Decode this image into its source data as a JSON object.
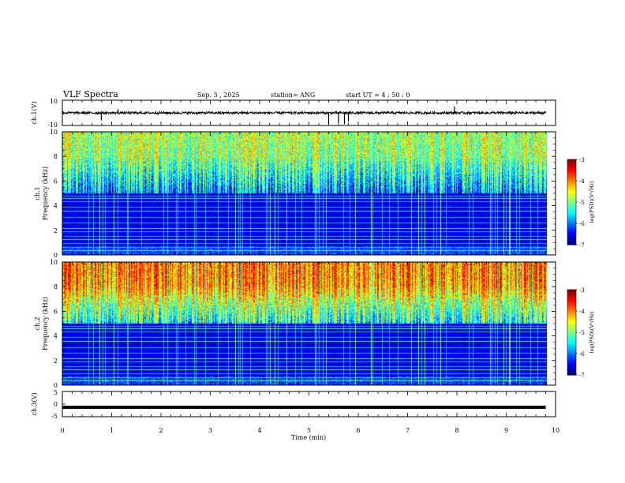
{
  "header": {
    "title": "VLF Spectra",
    "date": "Sep. 3 , 2025",
    "station": "station= ANG",
    "start": "start  UT =   4 : 50 : 0"
  },
  "chart_data": [
    {
      "type": "line",
      "name": "ch1-waveform",
      "ylabel": "ch.1(V)",
      "yticks": [
        "10",
        "-10"
      ],
      "ylim": [
        -10,
        10
      ],
      "baseline": 0,
      "spikes": [
        {
          "t": 0.79,
          "v": -6
        },
        {
          "t": 1.13,
          "v": 3
        },
        {
          "t": 5.4,
          "v": -9
        },
        {
          "t": 5.6,
          "v": -8
        },
        {
          "t": 5.72,
          "v": -9
        },
        {
          "t": 5.8,
          "v": -7
        },
        {
          "t": 7.95,
          "v": 5
        }
      ]
    },
    {
      "type": "heatmap",
      "name": "ch1-spectrogram",
      "ylabel": "Frequency (kHz)",
      "channel_label": "ch.1",
      "yticks": [
        "0",
        "2",
        "4",
        "6",
        "8",
        "10"
      ],
      "ylim": [
        0,
        10
      ],
      "colorbar": {
        "label": "log(PSD)(V²/Hz)",
        "ticks": [
          "-3",
          "-4",
          "-5",
          "-6",
          "-7"
        ],
        "range": [
          -7,
          -3
        ]
      },
      "intensity": {
        "low_freq_level": 0.12,
        "high_freq_level": 0.55
      }
    },
    {
      "type": "heatmap",
      "name": "ch2-spectrogram",
      "ylabel": "Frequency (kHz)",
      "channel_label": "ch.2",
      "yticks": [
        "0",
        "2",
        "4",
        "6",
        "8",
        "10"
      ],
      "ylim": [
        0,
        10
      ],
      "colorbar": {
        "label": "log(PSD)(V²/Hz)",
        "ticks": [
          "-3",
          "-4",
          "-5",
          "-6",
          "-7"
        ],
        "range": [
          -7,
          -3
        ]
      },
      "intensity": {
        "low_freq_level": 0.12,
        "high_freq_level": 0.75
      }
    },
    {
      "type": "line",
      "name": "ch3-waveform",
      "ylabel": "ch.3(V)",
      "yticks": [
        "5",
        "0",
        "-5"
      ],
      "ylim": [
        -5,
        5
      ],
      "baseline": -1.3
    }
  ],
  "xaxis": {
    "label": "Time  (min)",
    "ticks": [
      "0",
      "1",
      "2",
      "3",
      "4",
      "5",
      "6",
      "7",
      "8",
      "9",
      "10"
    ],
    "xlim": [
      0,
      10
    ],
    "data_end": 9.8
  },
  "colors": {
    "axis": "#000000",
    "background": "#ffffff"
  }
}
